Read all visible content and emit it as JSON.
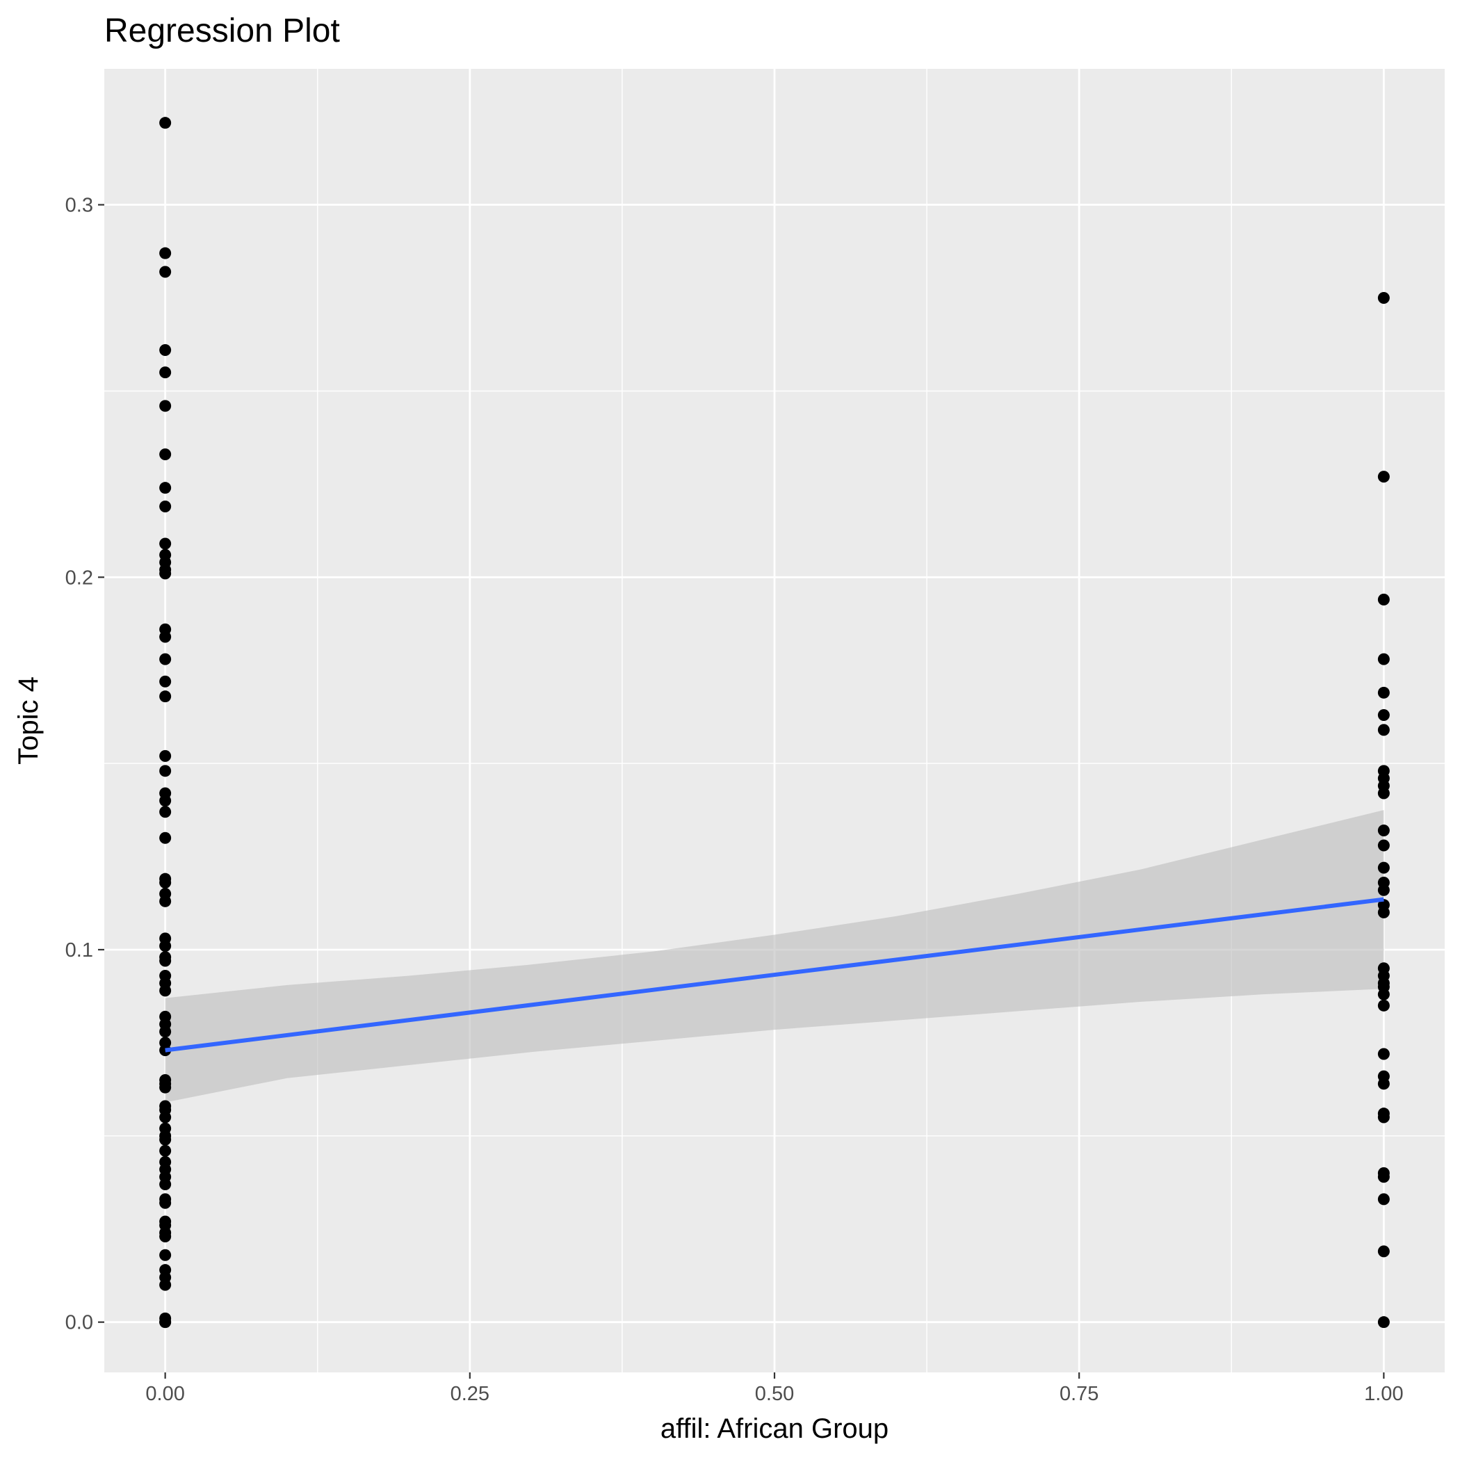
{
  "chart_data": {
    "type": "scatter",
    "title": "Regression Plot",
    "xlabel": "affil: African Group",
    "ylabel": "Topic 4",
    "xlim": [
      -0.05,
      1.05
    ],
    "ylim": [
      -0.0135,
      0.3365
    ],
    "x_ticks": [
      0,
      0.25,
      0.5,
      0.75,
      1
    ],
    "x_tick_labels": [
      "0.00",
      "0.25",
      "0.50",
      "0.75",
      "1.00"
    ],
    "y_ticks": [
      0,
      0.1,
      0.2,
      0.3
    ],
    "y_tick_labels": [
      "0.0",
      "0.1",
      "0.2",
      "0.3"
    ],
    "grid": true,
    "colors": {
      "panel": "#ebebeb",
      "grid": "#ffffff",
      "points": "#000000",
      "fit_line": "#3366ff",
      "ribbon": "#bdbdbd"
    },
    "series": [
      {
        "x": 0,
        "values": [
          0.322,
          0.287,
          0.282,
          0.261,
          0.255,
          0.246,
          0.233,
          0.224,
          0.219,
          0.209,
          0.206,
          0.204,
          0.202,
          0.201,
          0.186,
          0.184,
          0.178,
          0.172,
          0.168,
          0.152,
          0.148,
          0.142,
          0.14,
          0.137,
          0.13,
          0.119,
          0.118,
          0.115,
          0.113,
          0.103,
          0.101,
          0.098,
          0.097,
          0.093,
          0.091,
          0.089,
          0.082,
          0.08,
          0.078,
          0.075,
          0.073,
          0.065,
          0.064,
          0.063,
          0.058,
          0.057,
          0.055,
          0.052,
          0.05,
          0.049,
          0.046,
          0.043,
          0.041,
          0.039,
          0.037,
          0.033,
          0.032,
          0.027,
          0.026,
          0.024,
          0.023,
          0.018,
          0.014,
          0.012,
          0.01,
          0.001,
          0.0,
          0.0
        ]
      },
      {
        "x": 1,
        "values": [
          0.275,
          0.227,
          0.194,
          0.178,
          0.169,
          0.163,
          0.159,
          0.148,
          0.146,
          0.144,
          0.142,
          0.132,
          0.128,
          0.122,
          0.118,
          0.116,
          0.112,
          0.11,
          0.095,
          0.093,
          0.091,
          0.09,
          0.088,
          0.085,
          0.072,
          0.066,
          0.064,
          0.056,
          0.055,
          0.04,
          0.039,
          0.033,
          0.019,
          0.0
        ]
      }
    ],
    "fit_line": {
      "x": [
        0,
        1
      ],
      "y": [
        0.073,
        0.1135
      ]
    },
    "confidence_band": {
      "x": [
        0,
        0.1,
        0.2,
        0.3,
        0.4,
        0.5,
        0.6,
        0.7,
        0.8,
        0.9,
        1
      ],
      "lower": [
        0.059,
        0.0655,
        0.069,
        0.0725,
        0.0755,
        0.0785,
        0.081,
        0.0835,
        0.086,
        0.088,
        0.0895
      ],
      "upper": [
        0.087,
        0.0905,
        0.093,
        0.096,
        0.0995,
        0.104,
        0.109,
        0.115,
        0.1215,
        0.1295,
        0.1375
      ]
    }
  }
}
